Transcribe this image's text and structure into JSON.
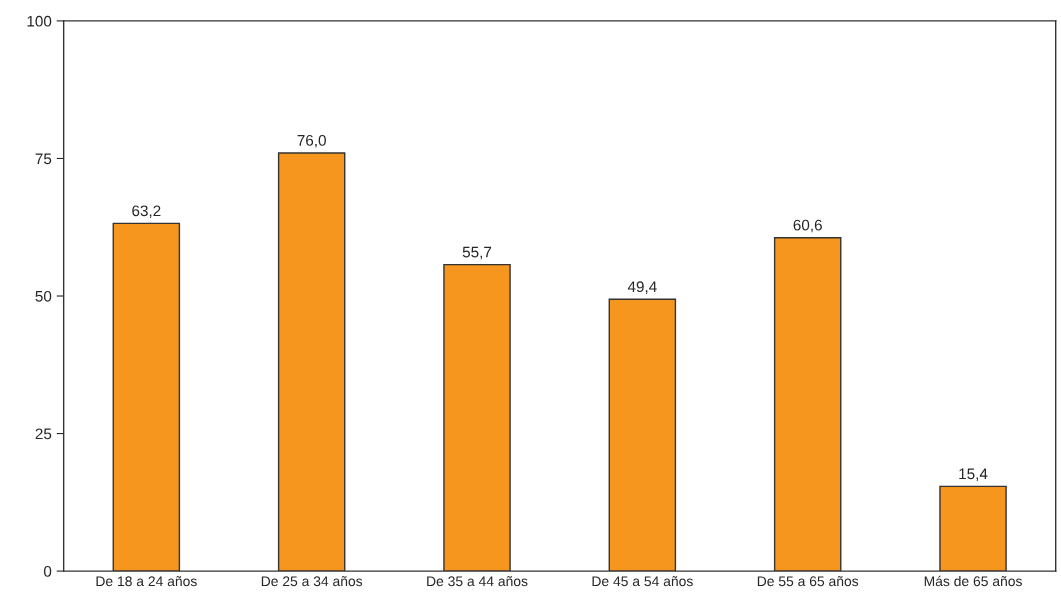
{
  "chart_data": {
    "type": "bar",
    "categories": [
      "De 18 a 24 años",
      "De 25 a 34 años",
      "De 35 a 44 años",
      "De 45 a 54 años",
      "De 55 a 65 años",
      "Más de 65 años"
    ],
    "values": [
      63.2,
      76.0,
      55.7,
      49.4,
      60.6,
      15.4
    ],
    "value_labels": [
      "63,2",
      "76,0",
      "55,7",
      "49,4",
      "60,6",
      "15,4"
    ],
    "color": "#f7961e",
    "ylim": [
      0,
      100
    ],
    "yticks": [
      0,
      25,
      50,
      75,
      100
    ],
    "grid": false,
    "legend": false
  }
}
